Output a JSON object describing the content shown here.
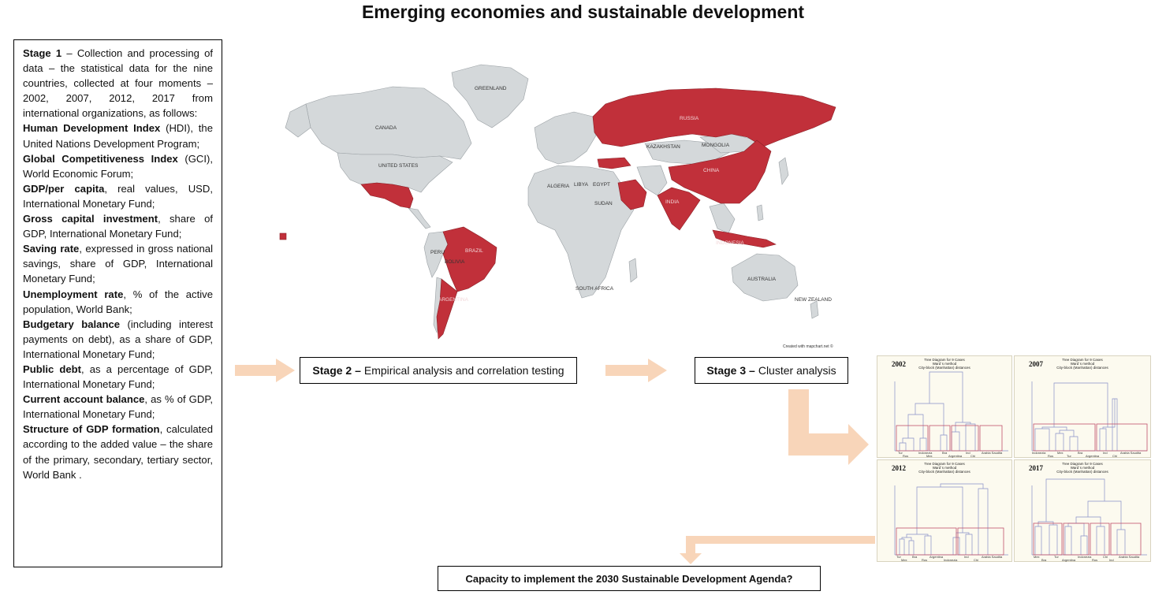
{
  "title": "Emerging economies and sustainable development",
  "stage1": {
    "intro_bold": "Stage 1",
    "intro": " – Collection and processing of data – the statistical data for the nine countries, collected at four moments – 2002, 2007, 2012, 2017 from international organizations, as follows:",
    "items": [
      {
        "bold": "Human Development Index",
        "text": " (HDI), the United Nations Development Program;"
      },
      {
        "bold": "Global Competitiveness Index",
        "text": " (GCI), World Economic Forum;"
      },
      {
        "bold": "GDP/per capita",
        "text": ", real values, USD, International Monetary Fund;"
      },
      {
        "bold": "Gross capital investment",
        "text": ", share of GDP, International Monetary Fund;"
      },
      {
        "bold": "Saving rate",
        "text": ", expressed in gross national savings, share of GDP, International Monetary Fund;"
      },
      {
        "bold": "Unemployment rate",
        "text": ", % of the active population, World Bank;"
      },
      {
        "bold": "Budgetary balance",
        "text": " (including interest payments on debt), as a share of GDP, International Monetary Fund;"
      },
      {
        "bold": "Public debt",
        "text": ", as a percentage of GDP, International Monetary Fund;"
      },
      {
        "bold": "Current account balance",
        "text": ", as % of GDP, International Monetary Fund;"
      },
      {
        "bold": "Structure of GDP formation",
        "text": ", calculated according to the added value – the share of the primary, secondary, tertiary sector, World Bank ."
      }
    ]
  },
  "stage2": {
    "bold": "Stage 2 –",
    "text": "Empirical analysis and correlation testing"
  },
  "stage3": {
    "bold": "Stage 3 –",
    "text": "Cluster analysis"
  },
  "final_box": "Capacity to implement the 2030 Sustainable Development Agenda?",
  "map": {
    "credit": "Created with mapchart.net ©",
    "labels": {
      "greenland": "GREENLAND",
      "canada": "CANADA",
      "usa": "UNITED STATES",
      "russia": "RUSSIA",
      "kazakhstan": "KAZAKHSTAN",
      "mongolia": "MONGOLIA",
      "china": "CHINA",
      "india": "INDIA",
      "brazil": "BRAZIL",
      "indonesia": "INDONESIA",
      "australia": "AUSTRALIA",
      "algeria": "ALGERIA",
      "libya": "LIBYA",
      "egypt": "EGYPT",
      "sudan": "SUDAN",
      "peru": "PERU",
      "bolivia": "BOLIVIA",
      "argentina": "ARGENTINA",
      "south_africa": "SOUTH AFRICA",
      "new_zealand": "NEW ZEALAND"
    },
    "colors": {
      "highlight": "#c1303a",
      "land": "#d4d8da",
      "ocean": "#ffffff"
    }
  },
  "dendrograms": [
    {
      "year": "2002",
      "subtitle": [
        "Tree Diagram for 9 Cases",
        "Ward`s method",
        "City-block (Manhattan) distances"
      ],
      "y_ticks": [
        "0",
        "2",
        "4",
        "6",
        "8",
        "10",
        "12",
        "14",
        "16",
        "18",
        "20",
        "22"
      ],
      "leaves_top": [
        "Tur",
        "Indonezia",
        "Bra",
        "Ind",
        "Arabia Saudita"
      ],
      "leaves_bottom": [
        "Rus",
        "Mex",
        "Argentina",
        "Chi"
      ]
    },
    {
      "year": "2007",
      "subtitle": [
        "Tree Diagram for 9 Cases",
        "Ward`s method",
        "City-block (Manhattan) distances"
      ],
      "y_ticks": [
        "0",
        "5",
        "10",
        "15",
        "20",
        "25"
      ],
      "leaves_top": [
        "Indonezia",
        "Mex",
        "Bra",
        "Ind",
        "Arabia Saudita"
      ],
      "leaves_bottom": [
        "Rus",
        "Tur",
        "Argentina",
        "Chi"
      ]
    },
    {
      "year": "2012",
      "subtitle": [
        "Tree Diagram for 9 Cases",
        "Ward`s method",
        "City-block (Manhattan) distances"
      ],
      "y_ticks": [
        "0",
        "5",
        "10",
        "15",
        "20",
        "25",
        "30"
      ],
      "leaves_top": [
        "Tur",
        "Bra",
        "Argentina",
        "Ind",
        "Arabia Saudita"
      ],
      "leaves_bottom": [
        "Mex",
        "Rus",
        "Indonezia",
        "Chi"
      ]
    },
    {
      "year": "2017",
      "subtitle": [
        "Tree Diagram for 9 Cases",
        "Ward`s method",
        "City-block (Manhattan) distances"
      ],
      "y_ticks": [
        "0",
        "5",
        "10",
        "15",
        "20",
        "25"
      ],
      "leaves_top": [
        "Mex",
        "Tur",
        "Indonezia",
        "Chi",
        "Arabia Saudita"
      ],
      "leaves_bottom": [
        "Bra",
        "Argentina",
        "Rus",
        "Ind"
      ]
    }
  ]
}
